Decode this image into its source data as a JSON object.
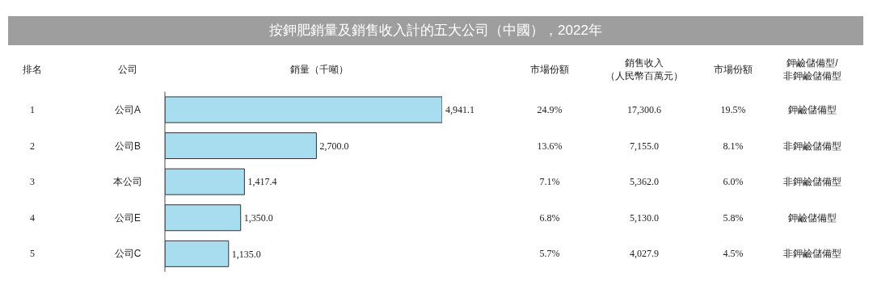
{
  "chart_data": {
    "type": "bar",
    "orientation": "horizontal",
    "title": "按鉀肥銷量及銷售收入計的五大公司（中國），2022年",
    "ylabel": "公司",
    "xlabel": "銷量（千噸）",
    "categories": [
      "公司A",
      "公司B",
      "本公司",
      "公司E",
      "公司C"
    ],
    "values": [
      4941.1,
      2700.0,
      1417.4,
      1350.0,
      1135.0
    ],
    "value_labels": [
      "4,941.1",
      "2,700.0",
      "1,417.4",
      "1,350.0",
      "1,135.0"
    ],
    "color": "#a8ddf0",
    "annotations": [
      "排名",
      "市場份額",
      "銷售收入（人民幣百萬元）",
      "市場份額",
      "鉀鹼儲備型/非鉀鹼儲備型",
      "1",
      "24.9%",
      "17,300.6",
      "19.5%",
      "鉀鹼儲備型",
      "2",
      "13.6%",
      "7,155.0",
      "8.1%",
      "非鉀鹼儲備型",
      "3",
      "7.1%",
      "5,362.0",
      "6.0%",
      "非鉀鹼儲備型",
      "4",
      "6.8%",
      "5,130.0",
      "5.8%",
      "鉀鹼儲備型",
      "5",
      "5.7%",
      "4,027.9",
      "4.5%",
      "非鉀鹼儲備型"
    ]
  }
}
